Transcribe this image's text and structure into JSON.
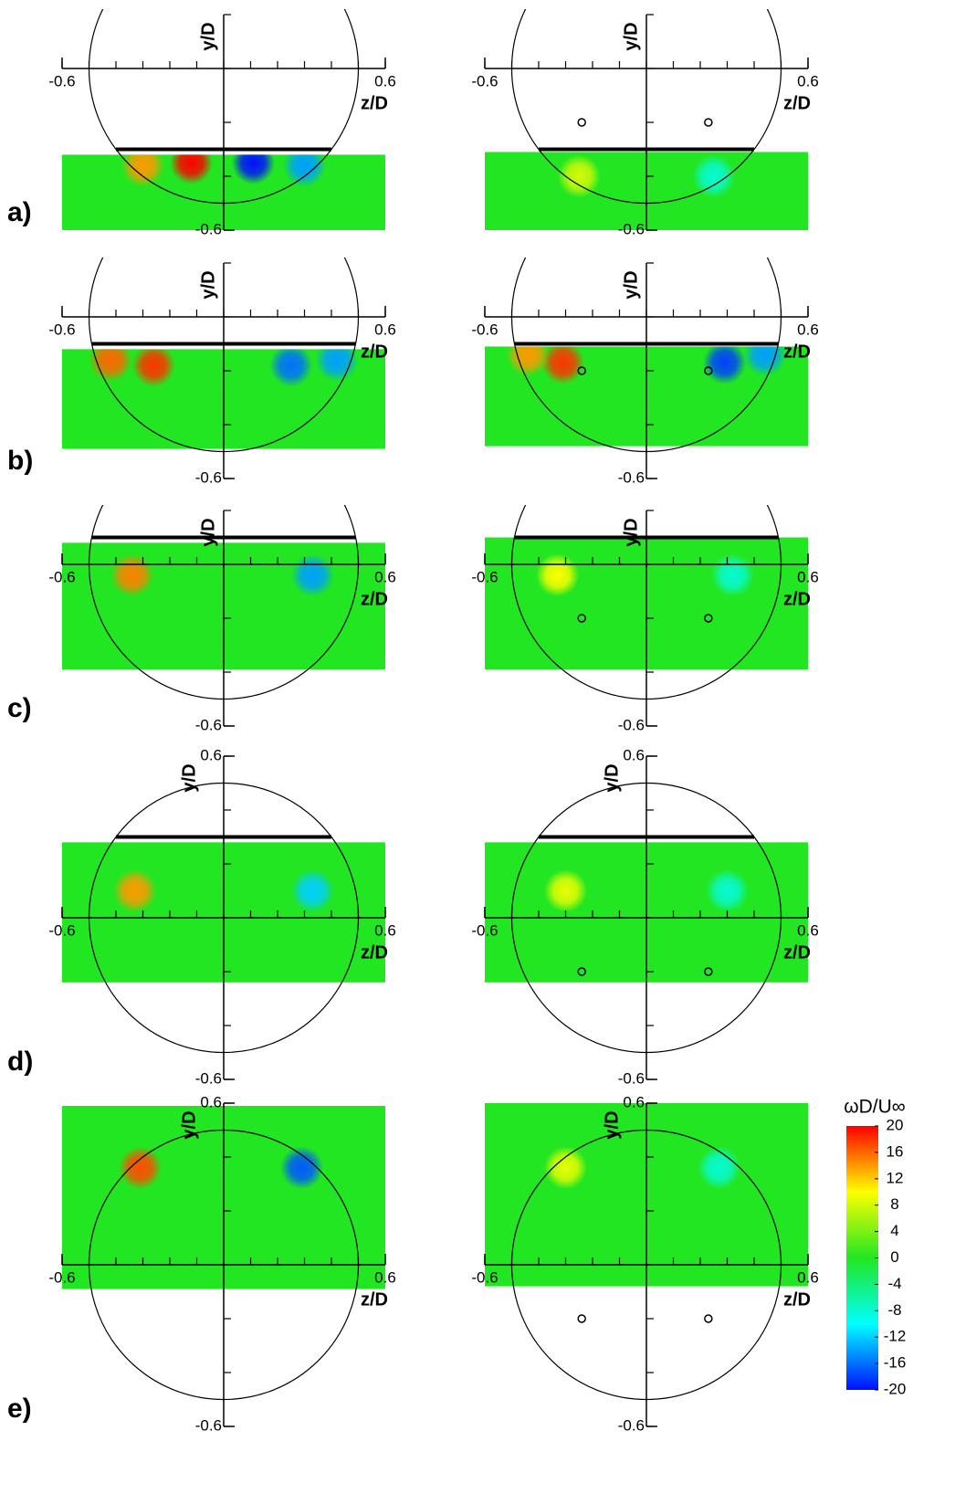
{
  "chart_data": [
    {
      "type": "contour",
      "label": "a)",
      "xlabel": "z/D",
      "ylabel": "y/D",
      "xlim": [
        -0.6,
        0.6
      ],
      "ylim": [
        -0.6,
        0.2
      ],
      "xticks": [
        -0.6,
        0.6
      ],
      "yticks": [
        -0.6
      ],
      "cylinder_radius": 0.5,
      "plate_y": -0.3,
      "field": {
        "zlim": [
          -0.6,
          0.6
        ],
        "ylim": [
          -0.6,
          -0.32
        ]
      },
      "vortices": [
        {
          "z": -0.12,
          "y": -0.35,
          "value": 20
        },
        {
          "z": -0.3,
          "y": -0.36,
          "value": 14
        },
        {
          "z": 0.11,
          "y": -0.35,
          "value": -20
        },
        {
          "z": 0.3,
          "y": -0.36,
          "value": -14
        }
      ]
    },
    {
      "type": "contour",
      "xlabel": "z/D",
      "ylabel": "y/D",
      "xlim": [
        -0.6,
        0.6
      ],
      "ylim": [
        -0.6,
        0.2
      ],
      "xticks": [
        -0.6,
        0.6
      ],
      "yticks": [
        -0.6
      ],
      "cylinder_radius": 0.5,
      "plate_y": -0.3,
      "field": {
        "zlim": [
          -0.6,
          0.6
        ],
        "ylim": [
          -0.6,
          -0.31
        ]
      },
      "probes": [
        {
          "z": -0.24,
          "y": -0.2
        },
        {
          "z": 0.23,
          "y": -0.2
        }
      ],
      "vortices": [
        {
          "z": -0.25,
          "y": -0.4,
          "value": 8
        },
        {
          "z": 0.25,
          "y": -0.4,
          "value": -8
        }
      ]
    },
    {
      "type": "contour",
      "label": "b)",
      "xlabel": "z/D",
      "ylabel": "y/D",
      "xlim": [
        -0.6,
        0.6
      ],
      "ylim": [
        -0.6,
        0.2
      ],
      "xticks": [
        -0.6,
        0.6
      ],
      "yticks": [
        -0.6
      ],
      "cylinder_radius": 0.5,
      "plate_y": -0.1,
      "field": {
        "zlim": [
          -0.6,
          0.6
        ],
        "ylim": [
          -0.49,
          -0.12
        ]
      },
      "vortices": [
        {
          "z": -0.26,
          "y": -0.18,
          "value": 18
        },
        {
          "z": -0.42,
          "y": -0.16,
          "value": 16
        },
        {
          "z": 0.25,
          "y": -0.18,
          "value": -16
        },
        {
          "z": 0.42,
          "y": -0.16,
          "value": -14
        }
      ]
    },
    {
      "type": "contour",
      "xlabel": "z/D",
      "ylabel": "y/D",
      "xlim": [
        -0.6,
        0.6
      ],
      "ylim": [
        -0.6,
        0.2
      ],
      "xticks": [
        -0.6,
        0.6
      ],
      "yticks": [
        -0.6
      ],
      "cylinder_radius": 0.5,
      "plate_y": -0.1,
      "field": {
        "zlim": [
          -0.6,
          0.6
        ],
        "ylim": [
          -0.48,
          -0.11
        ]
      },
      "probes": [
        {
          "z": -0.24,
          "y": -0.2
        },
        {
          "z": 0.23,
          "y": -0.2
        }
      ],
      "vortices": [
        {
          "z": -0.31,
          "y": -0.17,
          "value": 18
        },
        {
          "z": -0.44,
          "y": -0.14,
          "value": 14
        },
        {
          "z": 0.29,
          "y": -0.17,
          "value": -18
        },
        {
          "z": 0.44,
          "y": -0.14,
          "value": -14
        }
      ]
    },
    {
      "type": "contour",
      "label": "c)",
      "xlabel": "z/D",
      "ylabel": "y/D",
      "xlim": [
        -0.6,
        0.6
      ],
      "ylim": [
        -0.6,
        0.2
      ],
      "xticks": [
        -0.6,
        0.6
      ],
      "yticks": [
        -0.6
      ],
      "cylinder_radius": 0.5,
      "plate_y": 0.1,
      "field": {
        "zlim": [
          -0.6,
          0.6
        ],
        "ylim": [
          -0.39,
          0.08
        ]
      },
      "vortices": [
        {
          "z": -0.34,
          "y": -0.04,
          "value": 15
        },
        {
          "z": 0.33,
          "y": -0.04,
          "value": -14
        }
      ]
    },
    {
      "type": "contour",
      "xlabel": "z/D",
      "ylabel": "y/D",
      "xlim": [
        -0.6,
        0.6
      ],
      "ylim": [
        -0.6,
        0.2
      ],
      "xticks": [
        -0.6,
        0.6
      ],
      "yticks": [
        -0.6
      ],
      "cylinder_radius": 0.5,
      "plate_y": 0.1,
      "field": {
        "zlim": [
          -0.6,
          0.6
        ],
        "ylim": [
          -0.39,
          0.1
        ]
      },
      "probes": [
        {
          "z": -0.24,
          "y": -0.2
        },
        {
          "z": 0.23,
          "y": -0.2
        }
      ],
      "vortices": [
        {
          "z": -0.33,
          "y": -0.04,
          "value": 10
        },
        {
          "z": 0.32,
          "y": -0.04,
          "value": -8
        }
      ]
    },
    {
      "type": "contour",
      "label": "d)",
      "xlabel": "z/D",
      "ylabel": "y/D",
      "xlim": [
        -0.6,
        0.6
      ],
      "ylim": [
        -0.6,
        0.6
      ],
      "xticks": [
        -0.6,
        0.6
      ],
      "yticks": [
        -0.6,
        0.6
      ],
      "cylinder_radius": 0.5,
      "plate_y": 0.3,
      "field": {
        "zlim": [
          -0.6,
          0.6
        ],
        "ylim": [
          -0.24,
          0.28
        ]
      },
      "vortices": [
        {
          "z": -0.33,
          "y": 0.1,
          "value": 14
        },
        {
          "z": 0.33,
          "y": 0.1,
          "value": -12
        }
      ]
    },
    {
      "type": "contour",
      "xlabel": "z/D",
      "ylabel": "y/D",
      "xlim": [
        -0.6,
        0.6
      ],
      "ylim": [
        -0.6,
        0.6
      ],
      "xticks": [
        -0.6,
        0.6
      ],
      "yticks": [
        -0.6,
        0.6
      ],
      "cylinder_radius": 0.5,
      "plate_y": 0.3,
      "field": {
        "zlim": [
          -0.6,
          0.6
        ],
        "ylim": [
          -0.24,
          0.28
        ]
      },
      "probes": [
        {
          "z": -0.24,
          "y": -0.2
        },
        {
          "z": 0.23,
          "y": -0.2
        }
      ],
      "vortices": [
        {
          "z": -0.3,
          "y": 0.1,
          "value": 9
        },
        {
          "z": 0.3,
          "y": 0.1,
          "value": -8
        }
      ]
    },
    {
      "type": "contour",
      "label": "e)",
      "xlabel": "z/D",
      "ylabel": "y/D",
      "xlim": [
        -0.6,
        0.6
      ],
      "ylim": [
        -0.6,
        0.6
      ],
      "xticks": [
        -0.6,
        0.6
      ],
      "yticks": [
        -0.6,
        0.6
      ],
      "cylinder_radius": 0.5,
      "field": {
        "zlim": [
          -0.6,
          0.6
        ],
        "ylim": [
          -0.09,
          0.59
        ]
      },
      "vortices": [
        {
          "z": -0.31,
          "y": 0.36,
          "value": 17
        },
        {
          "z": 0.29,
          "y": 0.36,
          "value": -17
        }
      ]
    },
    {
      "type": "contour",
      "xlabel": "z/D",
      "ylabel": "y/D",
      "xlim": [
        -0.6,
        0.6
      ],
      "ylim": [
        -0.6,
        0.6
      ],
      "xticks": [
        -0.6,
        0.6
      ],
      "yticks": [
        -0.6,
        0.6
      ],
      "cylinder_radius": 0.5,
      "field": {
        "zlim": [
          -0.6,
          0.6
        ],
        "ylim": [
          -0.08,
          0.6
        ]
      },
      "probes": [
        {
          "z": -0.24,
          "y": -0.2
        },
        {
          "z": 0.23,
          "y": -0.2
        }
      ],
      "vortices": [
        {
          "z": -0.3,
          "y": 0.36,
          "value": 9
        },
        {
          "z": 0.27,
          "y": 0.36,
          "value": -8
        }
      ]
    }
  ],
  "colorbar": {
    "title": "ωD/U∞",
    "lim": [
      -20,
      20
    ],
    "ticks": [
      20,
      16,
      12,
      8,
      4,
      0,
      -4,
      -8,
      -12,
      -16,
      -20
    ],
    "colors": [
      "#0010ff",
      "#00ffff",
      "#22e622",
      "#ffff00",
      "#ff0000"
    ]
  }
}
